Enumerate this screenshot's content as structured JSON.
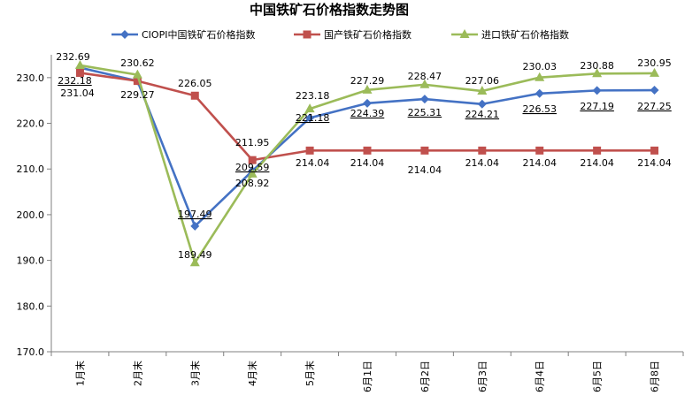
{
  "chart_data": {
    "type": "line",
    "title": "中国铁矿石价格指数走势图",
    "xlabel": "",
    "ylabel": "",
    "ylim": [
      170,
      235
    ],
    "yticks": [
      "170.0",
      "180.0",
      "190.0",
      "200.0",
      "210.0",
      "220.0",
      "230.0"
    ],
    "grid": false,
    "legend_position": "top",
    "categories": [
      "1月末",
      "2月末",
      "3月末",
      "4月末",
      "5月末",
      "6月1日",
      "6月2日",
      "6月3日",
      "6月4日",
      "6月5日",
      "6月8日"
    ],
    "series": [
      {
        "name": "CIOPI中国铁矿石价格指数",
        "color": "#4472C4",
        "marker": "diamond",
        "values": [
          232.18,
          229.27,
          197.49,
          209.59,
          221.18,
          224.39,
          225.31,
          224.21,
          226.53,
          227.19,
          227.25
        ],
        "labels": [
          "232.18",
          "229.27",
          "197.49",
          "209.59",
          "221.18",
          "224.39",
          "225.31",
          "224.21",
          "226.53",
          "227.19",
          "227.25"
        ]
      },
      {
        "name": "国产铁矿石价格指数",
        "color": "#C0504D",
        "marker": "square",
        "values": [
          231.04,
          229.27,
          226.05,
          211.95,
          214.04,
          214.04,
          214.04,
          214.04,
          214.04,
          214.04,
          214.04
        ],
        "labels": [
          "231.04",
          "",
          "226.05",
          "211.95",
          "214.04",
          "214.04",
          "214.04",
          "214.04",
          "214.04",
          "214.04",
          "214.04"
        ]
      },
      {
        "name": "进口铁矿石价格指数",
        "color": "#9BBB59",
        "marker": "triangle",
        "values": [
          232.69,
          230.62,
          189.49,
          208.92,
          223.18,
          227.29,
          228.47,
          227.06,
          230.03,
          230.88,
          230.95
        ],
        "labels": [
          "232.69",
          "230.62",
          "189.49",
          "208.92",
          "223.18",
          "227.29",
          "228.47",
          "227.06",
          "230.03",
          "230.88",
          "230.95"
        ]
      }
    ]
  }
}
